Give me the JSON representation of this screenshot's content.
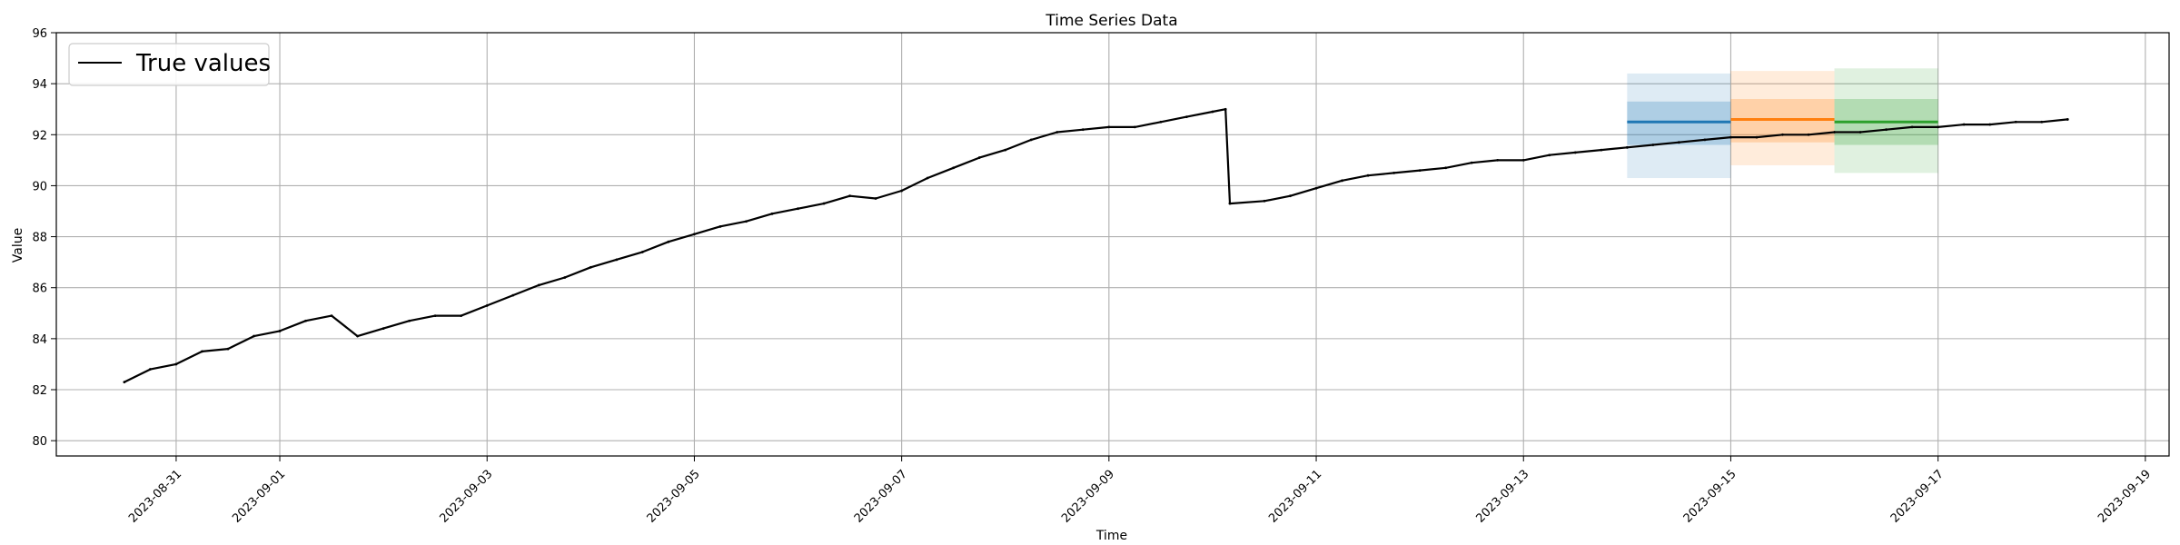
{
  "chart_data": {
    "type": "line",
    "title": "Time Series Data",
    "xlabel": "Time",
    "ylabel": "Value",
    "xlim": [
      "2023-08-29T20:15",
      "2023-09-19T05:30"
    ],
    "ylim": [
      79.4,
      96.0
    ],
    "grid": true,
    "legend": {
      "placement": "top-left",
      "entries": [
        {
          "name": "True values",
          "color": "#000000"
        }
      ]
    },
    "x_ticks": [
      "2023-08-31",
      "2023-09-01",
      "2023-09-03",
      "2023-09-05",
      "2023-09-07",
      "2023-09-09",
      "2023-09-11",
      "2023-09-13",
      "2023-09-15",
      "2023-09-17",
      "2023-09-19"
    ],
    "y_ticks": [
      80,
      82,
      84,
      86,
      88,
      90,
      92,
      94,
      96
    ],
    "series": [
      {
        "name": "True values",
        "color": "#000000",
        "x": [
          "2023-08-30T12:00",
          "2023-08-30T18:00",
          "2023-08-31T00:00",
          "2023-08-31T06:00",
          "2023-08-31T12:00",
          "2023-08-31T18:00",
          "2023-09-01T00:00",
          "2023-09-01T06:00",
          "2023-09-01T12:00",
          "2023-09-01T18:00",
          "2023-09-02T00:00",
          "2023-09-02T06:00",
          "2023-09-02T12:00",
          "2023-09-02T18:00",
          "2023-09-03T00:00",
          "2023-09-03T06:00",
          "2023-09-03T12:00",
          "2023-09-03T18:00",
          "2023-09-04T00:00",
          "2023-09-04T06:00",
          "2023-09-04T12:00",
          "2023-09-04T18:00",
          "2023-09-05T00:00",
          "2023-09-05T06:00",
          "2023-09-05T12:00",
          "2023-09-05T18:00",
          "2023-09-06T00:00",
          "2023-09-06T06:00",
          "2023-09-06T12:00",
          "2023-09-06T18:00",
          "2023-09-07T00:00",
          "2023-09-07T06:00",
          "2023-09-07T12:00",
          "2023-09-07T18:00",
          "2023-09-08T00:00",
          "2023-09-08T06:00",
          "2023-09-08T12:00",
          "2023-09-08T18:00",
          "2023-09-09T00:00",
          "2023-09-09T06:00",
          "2023-09-09T12:00",
          "2023-09-09T18:00",
          "2023-09-10T00:00",
          "2023-09-10T03:00",
          "2023-09-10T04:00",
          "2023-09-10T12:00",
          "2023-09-10T18:00",
          "2023-09-11T00:00",
          "2023-09-11T06:00",
          "2023-09-11T12:00",
          "2023-09-11T18:00",
          "2023-09-12T00:00",
          "2023-09-12T06:00",
          "2023-09-12T12:00",
          "2023-09-12T18:00",
          "2023-09-13T00:00",
          "2023-09-13T06:00",
          "2023-09-13T12:00",
          "2023-09-13T18:00",
          "2023-09-14T00:00",
          "2023-09-14T06:00",
          "2023-09-14T12:00",
          "2023-09-14T18:00",
          "2023-09-15T00:00",
          "2023-09-15T06:00",
          "2023-09-15T12:00",
          "2023-09-15T18:00",
          "2023-09-16T00:00",
          "2023-09-16T06:00",
          "2023-09-16T12:00",
          "2023-09-16T18:00",
          "2023-09-17T00:00",
          "2023-09-17T06:00",
          "2023-09-17T12:00",
          "2023-09-17T18:00",
          "2023-09-18T00:00",
          "2023-09-18T06:00"
        ],
        "values": [
          82.3,
          82.8,
          83.0,
          83.5,
          83.6,
          84.1,
          84.3,
          84.7,
          84.9,
          84.1,
          84.4,
          84.7,
          84.9,
          84.9,
          85.3,
          85.7,
          86.1,
          86.4,
          86.8,
          87.1,
          87.4,
          87.8,
          88.1,
          88.4,
          88.6,
          88.9,
          89.1,
          89.3,
          89.6,
          89.5,
          89.8,
          90.3,
          90.7,
          91.1,
          91.4,
          91.8,
          92.1,
          92.2,
          92.3,
          92.3,
          92.5,
          92.7,
          92.9,
          93.0,
          89.3,
          89.4,
          89.6,
          89.9,
          90.2,
          90.4,
          90.5,
          90.6,
          90.7,
          90.9,
          91.0,
          91.0,
          91.2,
          91.3,
          91.4,
          91.5,
          91.6,
          91.7,
          91.8,
          91.9,
          91.9,
          92.0,
          92.0,
          92.1,
          92.1,
          92.2,
          92.3,
          92.3,
          92.4,
          92.4,
          92.5,
          92.5,
          92.6
        ]
      }
    ],
    "forecasts": [
      {
        "color": "#1f77b4",
        "x_start": "2023-09-14T00:00",
        "x_end": "2023-09-15T00:00",
        "mean": 92.5,
        "band_inner": [
          91.6,
          93.3
        ],
        "band_outer": [
          90.3,
          94.4
        ]
      },
      {
        "color": "#ff7f0e",
        "x_start": "2023-09-15T00:00",
        "x_end": "2023-09-16T00:00",
        "mean": 92.6,
        "band_inner": [
          91.7,
          93.4
        ],
        "band_outer": [
          90.8,
          94.5
        ]
      },
      {
        "color": "#2ca02c",
        "x_start": "2023-09-16T00:00",
        "x_end": "2023-09-17T00:00",
        "mean": 92.5,
        "band_inner": [
          91.6,
          93.4
        ],
        "band_outer": [
          90.5,
          94.6
        ]
      }
    ]
  }
}
